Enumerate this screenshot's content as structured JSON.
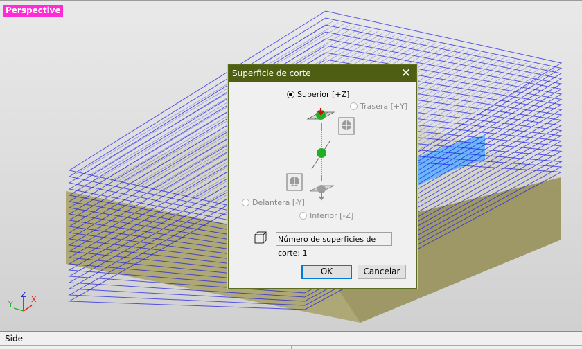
{
  "viewport": {
    "label": "Perspective",
    "axes": {
      "x": "X",
      "y": "Y",
      "z": "Z"
    }
  },
  "status_bar": {
    "text": "Side"
  },
  "dialog": {
    "title": "Superficie de corte",
    "close_icon": "close-icon",
    "options": [
      {
        "label": "Superior [+Z]",
        "checked": true,
        "enabled": true
      },
      {
        "label": "Trasera [+Y]",
        "checked": false,
        "enabled": false
      },
      {
        "label": "Delantera [-Y]",
        "checked": false,
        "enabled": false
      },
      {
        "label": "Inferior [-Z]",
        "checked": false,
        "enabled": false
      }
    ],
    "count_field": {
      "value": "Número de superficies de corte: 1"
    },
    "buttons": {
      "ok": "OK",
      "cancel": "Cancelar"
    }
  },
  "colors": {
    "toolpath": "#1a1ae6",
    "stock": "#a8a36a",
    "dialog_titlebar": "#4e5f14",
    "label_bg": "#ff2bd6"
  }
}
